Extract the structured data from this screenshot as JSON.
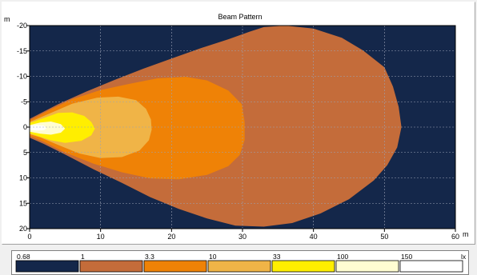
{
  "chart_data": {
    "type": "heatmap",
    "title": "Beam Pattern",
    "x_unit": "m",
    "y_unit": "m",
    "xlim": [
      0,
      60
    ],
    "ylim": [
      -20,
      20
    ],
    "x_ticks": [
      0,
      10,
      20,
      30,
      40,
      50,
      60
    ],
    "y_ticks": [
      -20,
      -15,
      -10,
      -5,
      0,
      5,
      10,
      15,
      20
    ],
    "y_tick_labels": [
      "-20",
      "-15",
      "-10",
      "-5",
      "0",
      "5",
      "10",
      "15",
      "20"
    ],
    "grid": true,
    "background_color": "#14274a",
    "contours": [
      {
        "level": 1,
        "color": "#c46c3a",
        "points": [
          [
            0,
            -1.6
          ],
          [
            4,
            -4.5
          ],
          [
            8,
            -7
          ],
          [
            12,
            -9.3
          ],
          [
            16,
            -11.5
          ],
          [
            20,
            -13.5
          ],
          [
            24,
            -15.5
          ],
          [
            28,
            -17.3
          ],
          [
            31,
            -18.8
          ],
          [
            33,
            -19.7
          ],
          [
            36,
            -20
          ],
          [
            40,
            -19.4
          ],
          [
            44,
            -17.6
          ],
          [
            47,
            -15.1
          ],
          [
            50,
            -11.8
          ],
          [
            51.2,
            -8
          ],
          [
            52,
            -4
          ],
          [
            52.4,
            0
          ],
          [
            51.8,
            4
          ],
          [
            50.4,
            7.5
          ],
          [
            48.5,
            10.5
          ],
          [
            45,
            14.2
          ],
          [
            41,
            17
          ],
          [
            37,
            18.9
          ],
          [
            33,
            19.6
          ],
          [
            29,
            19.4
          ],
          [
            25,
            18
          ],
          [
            21,
            16.1
          ],
          [
            17,
            13.8
          ],
          [
            13,
            11
          ],
          [
            9,
            8.3
          ],
          [
            5,
            5.4
          ],
          [
            2,
            3.3
          ],
          [
            0,
            2.1
          ]
        ]
      },
      {
        "level": 3.3,
        "color": "#ef8206",
        "points": [
          [
            0,
            -1.3
          ],
          [
            3,
            -3.5
          ],
          [
            6,
            -5.5
          ],
          [
            10,
            -7.3
          ],
          [
            14,
            -8.5
          ],
          [
            18,
            -9.6
          ],
          [
            22,
            -9.9
          ],
          [
            25,
            -9.2
          ],
          [
            28,
            -7.2
          ],
          [
            29.9,
            -4.5
          ],
          [
            30.3,
            -1
          ],
          [
            30.3,
            2.5
          ],
          [
            29.6,
            5.5
          ],
          [
            28,
            7.7
          ],
          [
            25,
            9.4
          ],
          [
            21,
            10.3
          ],
          [
            17,
            10.1
          ],
          [
            13,
            8.9
          ],
          [
            9,
            7.2
          ],
          [
            5,
            5
          ],
          [
            2,
            2.9
          ],
          [
            0,
            1.7
          ]
        ]
      },
      {
        "level": 10,
        "color": "#f0b447",
        "points": [
          [
            0,
            -1
          ],
          [
            3,
            -2.8
          ],
          [
            6,
            -4.6
          ],
          [
            9.5,
            -5.8
          ],
          [
            12.5,
            -6
          ],
          [
            15,
            -5.3
          ],
          [
            16.4,
            -3.6
          ],
          [
            17.1,
            -1.5
          ],
          [
            17.2,
            0.5
          ],
          [
            16.8,
            2.6
          ],
          [
            15.5,
            4.6
          ],
          [
            13,
            5.9
          ],
          [
            10,
            6.1
          ],
          [
            7,
            5.2
          ],
          [
            4,
            3.5
          ],
          [
            1.5,
            2
          ],
          [
            0,
            1.4
          ]
        ]
      },
      {
        "level": 33,
        "color": "#ffee00",
        "points": [
          [
            0,
            -0.8
          ],
          [
            2,
            -1.8
          ],
          [
            4,
            -2.8
          ],
          [
            6,
            -2.9
          ],
          [
            7.7,
            -2.2
          ],
          [
            8.7,
            -1
          ],
          [
            9.2,
            0.3
          ],
          [
            8.7,
            1.6
          ],
          [
            7.3,
            2.7
          ],
          [
            5,
            3.1
          ],
          [
            3,
            2.6
          ],
          [
            1.2,
            1.8
          ],
          [
            0,
            1.2
          ]
        ]
      },
      {
        "level": 100,
        "color": "#fffdd2",
        "points": [
          [
            0,
            -0.4
          ],
          [
            1.5,
            -0.9
          ],
          [
            3,
            -1.1
          ],
          [
            4.4,
            -0.6
          ],
          [
            5,
            0.3
          ],
          [
            4.4,
            1.1
          ],
          [
            3,
            1.5
          ],
          [
            1.5,
            1.3
          ],
          [
            0,
            0.9
          ]
        ]
      },
      {
        "level": 150,
        "color": "#ffffff",
        "points": [
          [
            0,
            -0.2
          ],
          [
            1,
            -0.4
          ],
          [
            2,
            -0.3
          ],
          [
            2.4,
            0.2
          ],
          [
            2,
            0.6
          ],
          [
            1,
            0.7
          ],
          [
            0,
            0.5
          ]
        ]
      }
    ]
  },
  "legend": {
    "unit": "lx",
    "labels": [
      "0.68",
      "1",
      "3.3",
      "10",
      "33",
      "100",
      "150"
    ],
    "colors": [
      "#14274a",
      "#c46c3a",
      "#ef8206",
      "#f0b447",
      "#ffee00",
      "#fffdd2",
      "#ffffff"
    ]
  }
}
